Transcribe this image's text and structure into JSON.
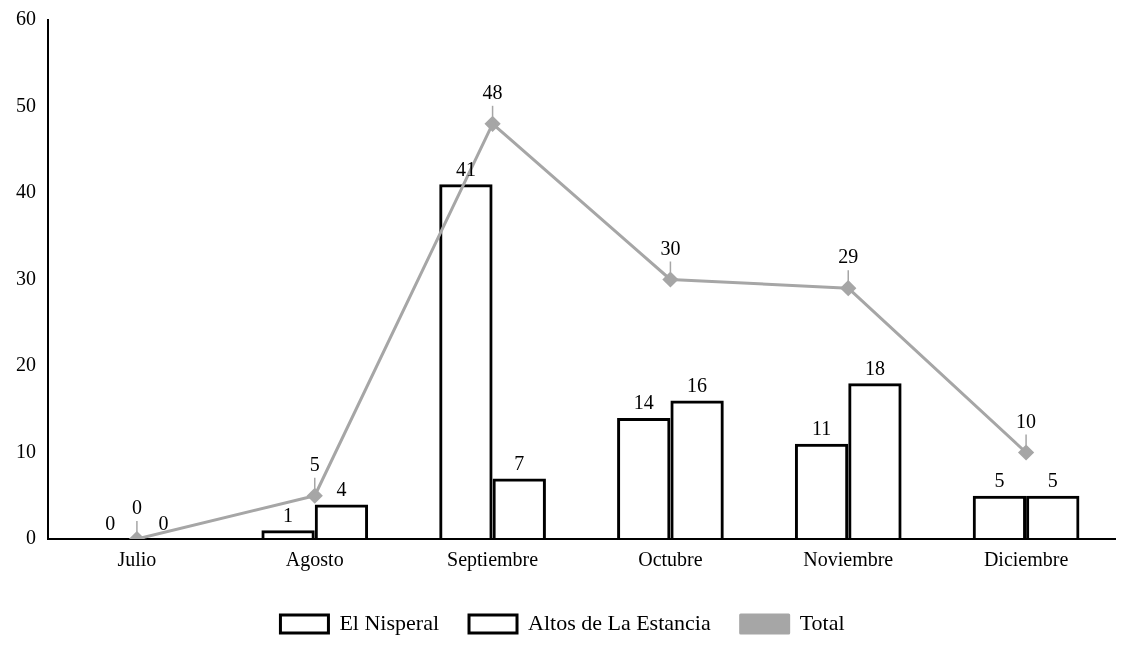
{
  "chart_data": {
    "type": "bar",
    "categories": [
      "Julio",
      "Agosto",
      "Septiembre",
      "Octubre",
      "Noviembre",
      "Diciembre"
    ],
    "series": [
      {
        "name": "El Nisperal",
        "color": "#000000",
        "values": [
          0,
          1,
          41,
          14,
          11,
          5
        ]
      },
      {
        "name": "Altos de La Estancia",
        "color": "#000000",
        "values": [
          0,
          4,
          7,
          16,
          18,
          5
        ]
      },
      {
        "name": "Total",
        "type": "line",
        "color": "#a6a6a6",
        "values": [
          0,
          5,
          48,
          30,
          29,
          10
        ]
      }
    ],
    "ylim": [
      0,
      60
    ],
    "yticks": [
      0,
      10,
      20,
      30,
      40,
      50,
      60
    ],
    "grid": false,
    "legend": "bottom",
    "marker": "diamond",
    "data_labels": true
  }
}
